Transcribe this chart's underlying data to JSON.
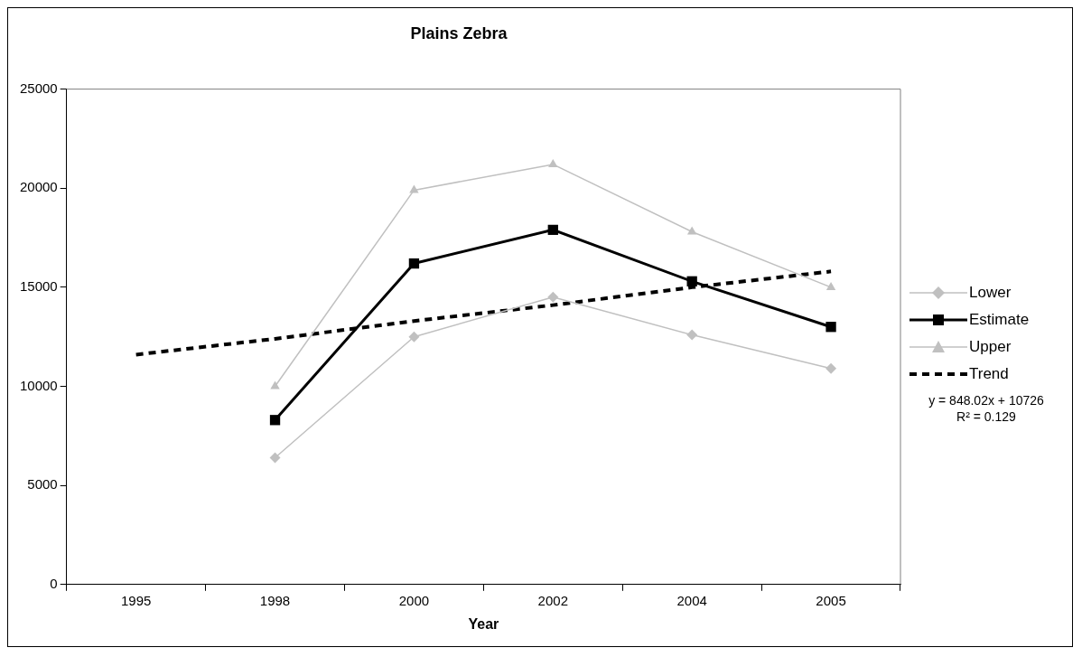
{
  "chart_data": {
    "type": "line",
    "title": "Plains Zebra",
    "xlabel": "Year",
    "categories": [
      "1995",
      "1998",
      "2000",
      "2002",
      "2004",
      "2005"
    ],
    "series": [
      {
        "name": "Lower",
        "color": "#c0c0c0",
        "marker": "diamond",
        "values": [
          null,
          6400,
          12500,
          14500,
          12600,
          10900
        ]
      },
      {
        "name": "Estimate",
        "color": "#000000",
        "marker": "square",
        "values": [
          null,
          8300,
          16200,
          17900,
          15300,
          13000
        ]
      },
      {
        "name": "Upper",
        "color": "#c0c0c0",
        "marker": "triangle",
        "values": [
          null,
          10000,
          19900,
          21200,
          17800,
          15000
        ]
      },
      {
        "name": "Trend",
        "color": "#000000",
        "marker": "none",
        "line_style": "dashed",
        "values": [
          11600,
          12400,
          13300,
          14100,
          15000,
          15800
        ]
      }
    ],
    "ylim": [
      0,
      25000
    ],
    "yticks": [
      0,
      5000,
      10000,
      15000,
      20000,
      25000
    ],
    "grid": false,
    "legend": "right",
    "annotations": [
      "y = 848.02x + 10726",
      "R² = 0.129"
    ]
  }
}
